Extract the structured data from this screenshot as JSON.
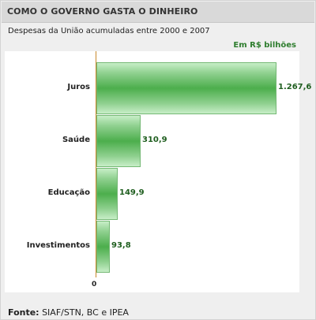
{
  "header": {
    "title": "COMO O GOVERNO GASTA O DINHEIRO"
  },
  "chart_data": {
    "type": "bar",
    "orientation": "horizontal",
    "subtitle": "Despesas da União acumuladas entre 2000 e 2007",
    "unit": "Em R$ bilhões",
    "categories": [
      "Juros",
      "Saúde",
      "Educação",
      "Investimentos"
    ],
    "values": [
      1267.6,
      310.9,
      149.9,
      93.8
    ],
    "value_labels": [
      "1.267,6",
      "310,9",
      "149,9",
      "93,8"
    ],
    "zero_label": "0",
    "xlim": [
      0,
      1267.6
    ],
    "grid": false,
    "colors": {
      "bar": "#4cae4c",
      "axis": "#c8892c",
      "value_text": "#1f5e1f",
      "unit_text": "#2e7d2e"
    }
  },
  "footer": {
    "source_label": "Fonte:",
    "source_text": "SIAF/STN, BC e IPEA"
  }
}
